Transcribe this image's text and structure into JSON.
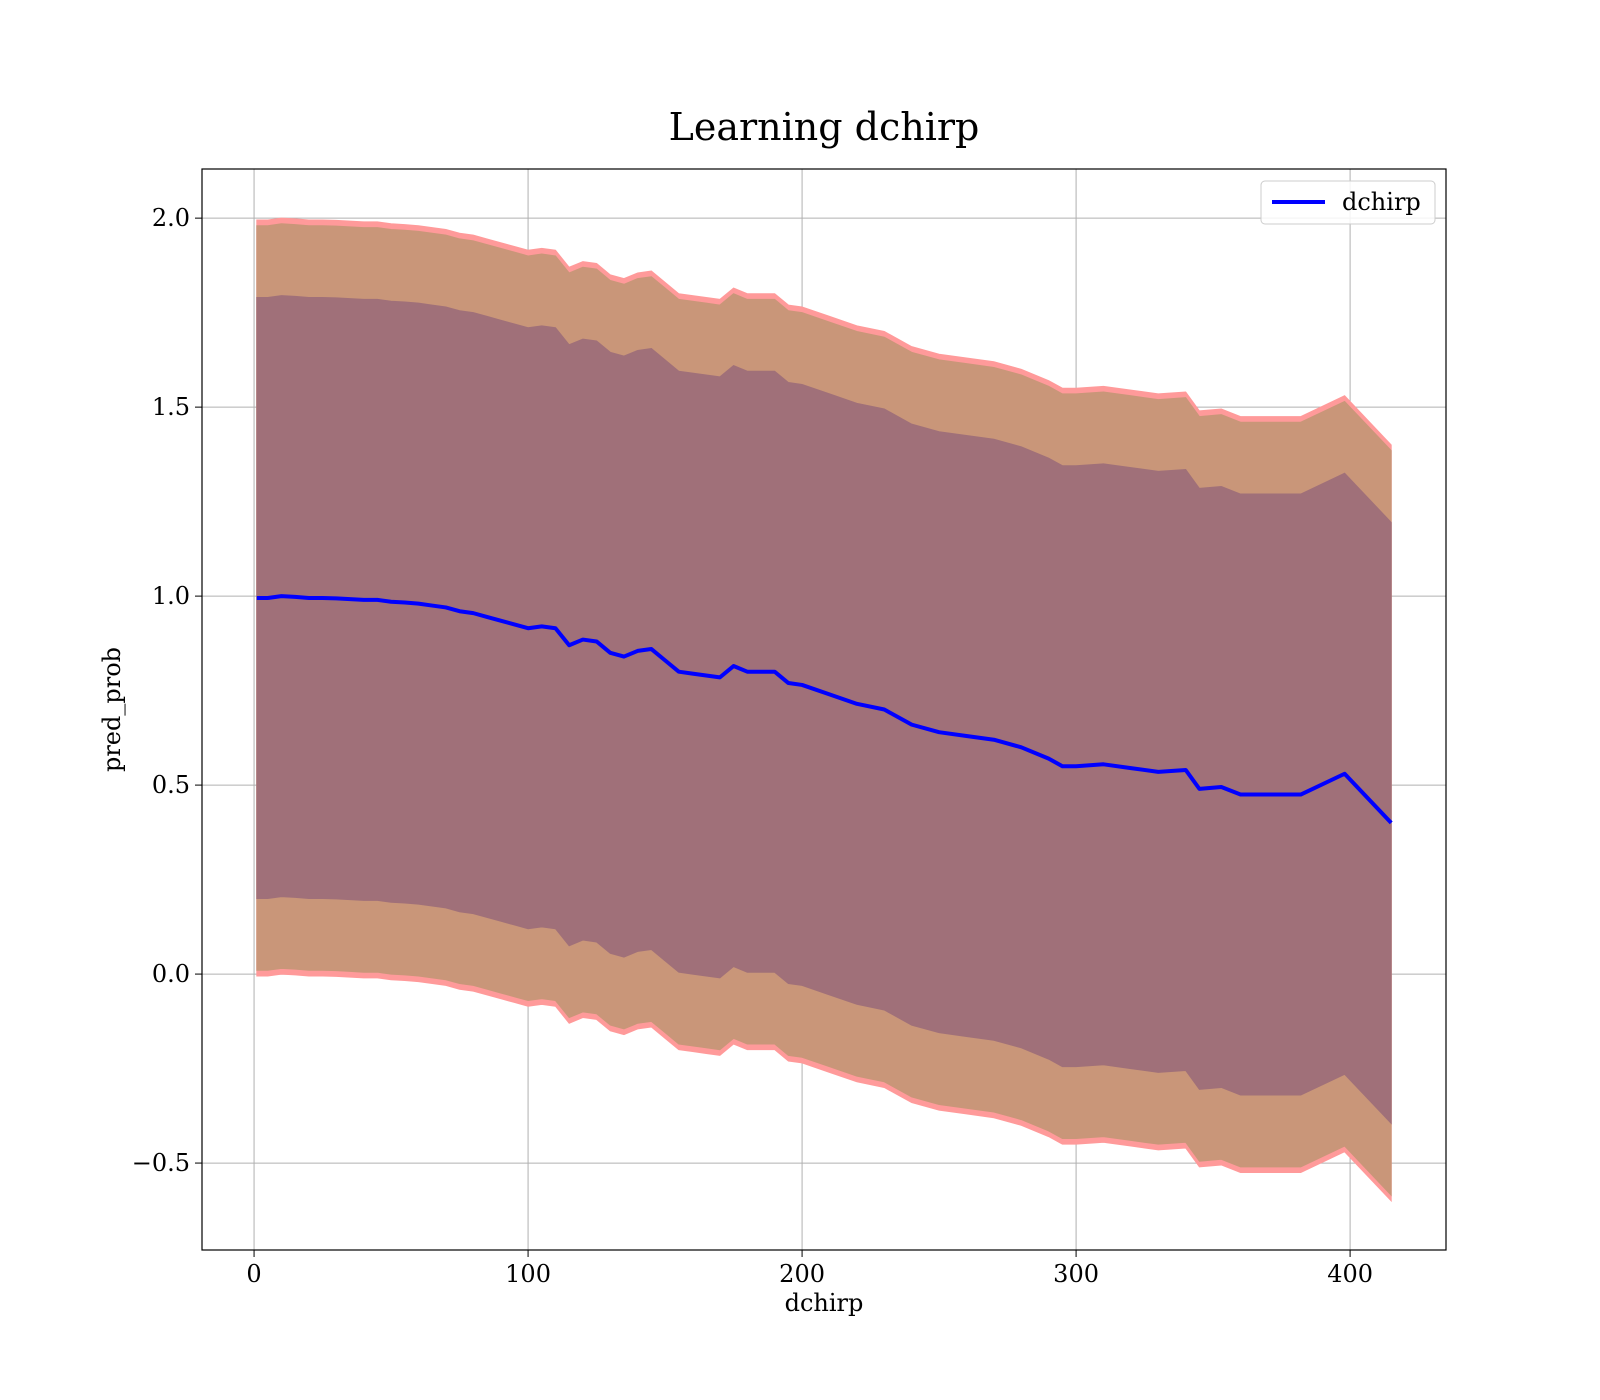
{
  "chart_data": {
    "type": "line",
    "title": "Learning dchirp",
    "xlabel": "dchirp",
    "ylabel": "pred_prob",
    "xlim": [
      -19,
      435
    ],
    "ylim": [
      -0.73,
      2.13
    ],
    "xticks": [
      0,
      100,
      200,
      300,
      400
    ],
    "xtick_labels": [
      "0",
      "100",
      "200",
      "300",
      "400"
    ],
    "yticks": [
      -0.5,
      0.0,
      0.5,
      1.0,
      1.5,
      2.0
    ],
    "ytick_labels": [
      "−0.5",
      "0.0",
      "0.5",
      "1.0",
      "1.5",
      "2.0"
    ],
    "grid": true,
    "legend": {
      "position": "top-right",
      "entries": [
        "dchirp"
      ]
    },
    "colors": {
      "line": "#0000ff",
      "outer_band": "#ff9a9a",
      "middle_band": "#c99679",
      "inner_band": "#a07079",
      "grid": "#b0b0b0"
    },
    "series": [
      {
        "name": "dchirp",
        "x": [
          1,
          5,
          10,
          15,
          20,
          25,
          30,
          35,
          40,
          45,
          50,
          55,
          60,
          65,
          70,
          75,
          80,
          85,
          90,
          95,
          100,
          105,
          110,
          115,
          120,
          125,
          130,
          135,
          140,
          145,
          150,
          155,
          160,
          165,
          170,
          175,
          180,
          185,
          190,
          195,
          200,
          210,
          220,
          230,
          240,
          250,
          260,
          270,
          280,
          290,
          295,
          300,
          310,
          320,
          330,
          340,
          345,
          353,
          360,
          370,
          382,
          398,
          415
        ],
        "y": [
          0.995,
          0.995,
          1.0,
          0.998,
          0.995,
          0.995,
          0.994,
          0.992,
          0.99,
          0.99,
          0.985,
          0.983,
          0.98,
          0.975,
          0.97,
          0.96,
          0.955,
          0.945,
          0.935,
          0.925,
          0.915,
          0.92,
          0.915,
          0.87,
          0.885,
          0.88,
          0.85,
          0.84,
          0.855,
          0.86,
          0.83,
          0.8,
          0.795,
          0.79,
          0.785,
          0.815,
          0.8,
          0.8,
          0.8,
          0.77,
          0.765,
          0.74,
          0.715,
          0.7,
          0.66,
          0.64,
          0.63,
          0.62,
          0.6,
          0.57,
          0.55,
          0.55,
          0.555,
          0.545,
          0.535,
          0.54,
          0.49,
          0.495,
          0.475,
          0.475,
          0.475,
          0.53,
          0.4
        ]
      }
    ],
    "bands": [
      {
        "name_hidden": true,
        "offset": 1.0,
        "width": 8,
        "color_key": "outer_band"
      },
      {
        "name_hidden": true,
        "offset": 0.985,
        "color_key": "middle_band"
      },
      {
        "name_hidden": true,
        "offset": 0.795,
        "color_key": "inner_band"
      }
    ]
  }
}
